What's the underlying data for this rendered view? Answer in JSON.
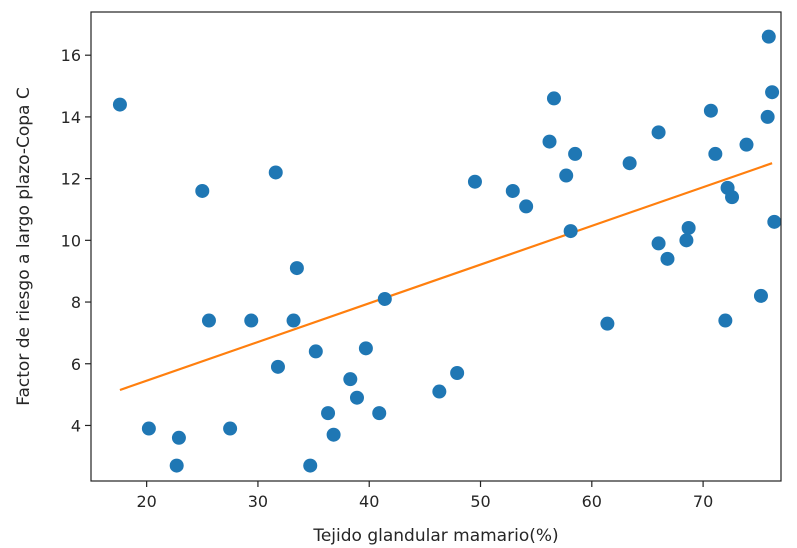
{
  "colors": {
    "points": "#1f77b4",
    "fit_line": "#ff7f0e",
    "axes": "#222222",
    "background": "#ffffff"
  },
  "chart_data": {
    "type": "scatter",
    "title": "",
    "xlabel": "Tejido glandular mamario(%)",
    "ylabel": "Factor de riesgo a largo plazo-Copa C",
    "xlim": [
      15,
      77
    ],
    "ylim": [
      2.2,
      17.4
    ],
    "xticks": [
      20,
      30,
      40,
      50,
      60,
      70
    ],
    "yticks": [
      4,
      6,
      8,
      10,
      12,
      14,
      16
    ],
    "grid": false,
    "legend": "none",
    "points": [
      {
        "x": 17.6,
        "y": 14.4
      },
      {
        "x": 20.2,
        "y": 3.9
      },
      {
        "x": 22.7,
        "y": 2.7
      },
      {
        "x": 22.9,
        "y": 3.6
      },
      {
        "x": 25.0,
        "y": 11.6
      },
      {
        "x": 25.6,
        "y": 7.4
      },
      {
        "x": 27.5,
        "y": 3.9
      },
      {
        "x": 29.4,
        "y": 7.4
      },
      {
        "x": 31.6,
        "y": 12.2
      },
      {
        "x": 31.8,
        "y": 5.9
      },
      {
        "x": 33.2,
        "y": 7.4
      },
      {
        "x": 33.5,
        "y": 9.1
      },
      {
        "x": 34.7,
        "y": 2.7
      },
      {
        "x": 35.2,
        "y": 6.4
      },
      {
        "x": 36.3,
        "y": 4.4
      },
      {
        "x": 36.8,
        "y": 3.7
      },
      {
        "x": 38.3,
        "y": 5.5
      },
      {
        "x": 38.9,
        "y": 4.9
      },
      {
        "x": 39.7,
        "y": 6.5
      },
      {
        "x": 40.9,
        "y": 4.4
      },
      {
        "x": 41.4,
        "y": 8.1
      },
      {
        "x": 46.3,
        "y": 5.1
      },
      {
        "x": 47.9,
        "y": 5.7
      },
      {
        "x": 49.5,
        "y": 11.9
      },
      {
        "x": 52.9,
        "y": 11.6
      },
      {
        "x": 54.1,
        "y": 11.1
      },
      {
        "x": 56.2,
        "y": 13.2
      },
      {
        "x": 56.6,
        "y": 14.6
      },
      {
        "x": 57.7,
        "y": 12.1
      },
      {
        "x": 58.1,
        "y": 10.3
      },
      {
        "x": 58.5,
        "y": 12.8
      },
      {
        "x": 61.4,
        "y": 7.3
      },
      {
        "x": 63.4,
        "y": 12.5
      },
      {
        "x": 66.0,
        "y": 13.5
      },
      {
        "x": 66.0,
        "y": 9.9
      },
      {
        "x": 66.8,
        "y": 9.4
      },
      {
        "x": 68.5,
        "y": 10.0
      },
      {
        "x": 68.7,
        "y": 10.4
      },
      {
        "x": 70.7,
        "y": 14.2
      },
      {
        "x": 71.1,
        "y": 12.8
      },
      {
        "x": 72.0,
        "y": 7.4
      },
      {
        "x": 72.2,
        "y": 11.7
      },
      {
        "x": 72.6,
        "y": 11.4
      },
      {
        "x": 73.9,
        "y": 13.1
      },
      {
        "x": 75.2,
        "y": 8.2
      },
      {
        "x": 75.8,
        "y": 14.0
      },
      {
        "x": 75.9,
        "y": 16.6
      },
      {
        "x": 76.2,
        "y": 14.8
      },
      {
        "x": 76.4,
        "y": 10.6
      }
    ],
    "fit_line": {
      "x": [
        17.6,
        76.2
      ],
      "y": [
        5.15,
        12.5
      ]
    }
  }
}
